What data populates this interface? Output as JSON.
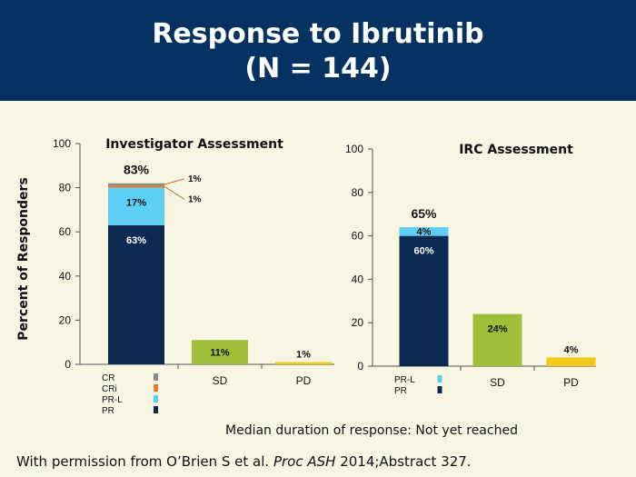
{
  "header": {
    "title_line1": "Response to Ibrutinib",
    "title_line2": "(N = 144)"
  },
  "ylabel": "Percent of Responders",
  "colors": {
    "header_bg": "#063262",
    "background": "#f8f5e2",
    "CR": "#8c8c8c",
    "CRi": "#e07a2c",
    "PR-L": "#5fd0f5",
    "PR": "#0b2a52",
    "SD": "#9fbe3a",
    "PD": "#f4c816"
  },
  "chart_data": [
    {
      "type": "bar",
      "stacked": true,
      "title": "Investigator Assessment",
      "categories": [
        "",
        "SD",
        "PD"
      ],
      "ylim": [
        0,
        100
      ],
      "yticks": [
        0,
        20,
        40,
        60,
        80,
        100
      ],
      "series": [
        {
          "name": "PR",
          "values": [
            63,
            0,
            0
          ]
        },
        {
          "name": "PR-L",
          "values": [
            17,
            0,
            0
          ]
        },
        {
          "name": "CRi",
          "values": [
            1,
            0,
            0
          ]
        },
        {
          "name": "CR",
          "values": [
            1,
            0,
            0
          ]
        },
        {
          "name": "SD",
          "values": [
            0,
            11,
            0
          ]
        },
        {
          "name": "PD",
          "values": [
            0,
            0,
            1
          ]
        }
      ],
      "totals": [
        {
          "category_index": 0,
          "label": "83%"
        }
      ],
      "data_labels": [
        {
          "series": "PR",
          "category_index": 0,
          "label": "63%"
        },
        {
          "series": "PR-L",
          "category_index": 0,
          "label": "17%"
        },
        {
          "series": "CR",
          "category_index": 0,
          "label": "1%",
          "callout": true
        },
        {
          "series": "CRi",
          "category_index": 0,
          "label": "1%",
          "callout": true
        },
        {
          "series": "SD",
          "category_index": 1,
          "label": "11%"
        },
        {
          "series": "PD",
          "category_index": 2,
          "label": "1%"
        }
      ],
      "legend": [
        "CR",
        "CRi",
        "PR-L",
        "PR"
      ],
      "legend_position": "below first bar"
    },
    {
      "type": "bar",
      "stacked": true,
      "title": "IRC Assessment",
      "categories": [
        "",
        "SD",
        "PD"
      ],
      "ylim": [
        0,
        100
      ],
      "yticks": [
        0,
        20,
        40,
        60,
        80,
        100
      ],
      "series": [
        {
          "name": "PR",
          "values": [
            60,
            0,
            0
          ]
        },
        {
          "name": "PR-L",
          "values": [
            4,
            0,
            0
          ]
        },
        {
          "name": "SD",
          "values": [
            0,
            24,
            0
          ]
        },
        {
          "name": "PD",
          "values": [
            0,
            0,
            4
          ]
        }
      ],
      "totals": [
        {
          "category_index": 0,
          "label": "65%"
        }
      ],
      "data_labels": [
        {
          "series": "PR",
          "category_index": 0,
          "label": "60%"
        },
        {
          "series": "PR-L",
          "category_index": 0,
          "label": "4%"
        },
        {
          "series": "SD",
          "category_index": 1,
          "label": "24%"
        },
        {
          "series": "PD",
          "category_index": 2,
          "label": "4%"
        }
      ],
      "legend": [
        "PR-L",
        "PR"
      ],
      "legend_position": "below first bar"
    }
  ],
  "footnote": "Median duration of response: Not yet reached",
  "citation": {
    "prefix": "With permission from O’Brien S et al. ",
    "journal": "Proc ASH",
    "suffix": " 2014;Abstract 327."
  }
}
